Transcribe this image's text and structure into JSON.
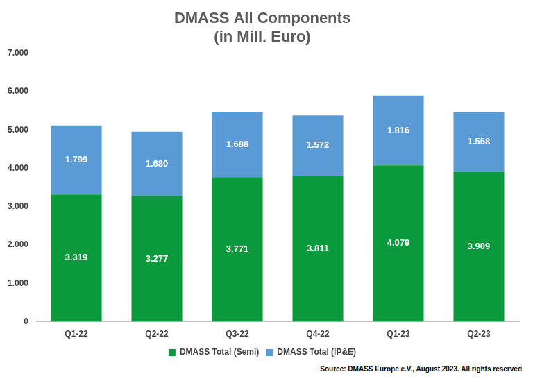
{
  "chart_data": {
    "type": "bar",
    "title": "DMASS All Components\n(in Mill. Euro)",
    "categories": [
      "Q1-22",
      "Q2-22",
      "Q3-22",
      "Q4-22",
      "Q1-23",
      "Q2-23"
    ],
    "series": [
      {
        "name": "DMASS Total (Semi)",
        "color": "#0a9a3c",
        "values": [
          3319,
          3277,
          3771,
          3811,
          4079,
          3909
        ],
        "value_labels": [
          "3.319",
          "3.277",
          "3.771",
          "3.811",
          "4.079",
          "3.909"
        ]
      },
      {
        "name": "DMASS Total (IP&E)",
        "color": "#5b9bd5",
        "values": [
          1799,
          1680,
          1688,
          1572,
          1816,
          1558
        ],
        "value_labels": [
          "1.799",
          "1.680",
          "1.688",
          "1.572",
          "1.816",
          "1.558"
        ]
      }
    ],
    "ylim": [
      0,
      7000
    ],
    "yticks": [
      0,
      {
        "value": 1000,
        "label": "1.000"
      },
      {
        "value": 2000,
        "label": "2.000"
      },
      {
        "value": 3000,
        "label": "3.000"
      },
      {
        "value": 4000,
        "label": "4.000"
      },
      {
        "value": 5000,
        "label": "5.000"
      },
      {
        "value": 6000,
        "label": "6.000"
      },
      {
        "value": 7000,
        "label": "7.000"
      }
    ],
    "stacked": true,
    "grid": false,
    "legend": "bottom",
    "data_labels": true,
    "annotations": [
      "Source: DMASS Europe e.V., August 2023. All rights reserved"
    ]
  }
}
